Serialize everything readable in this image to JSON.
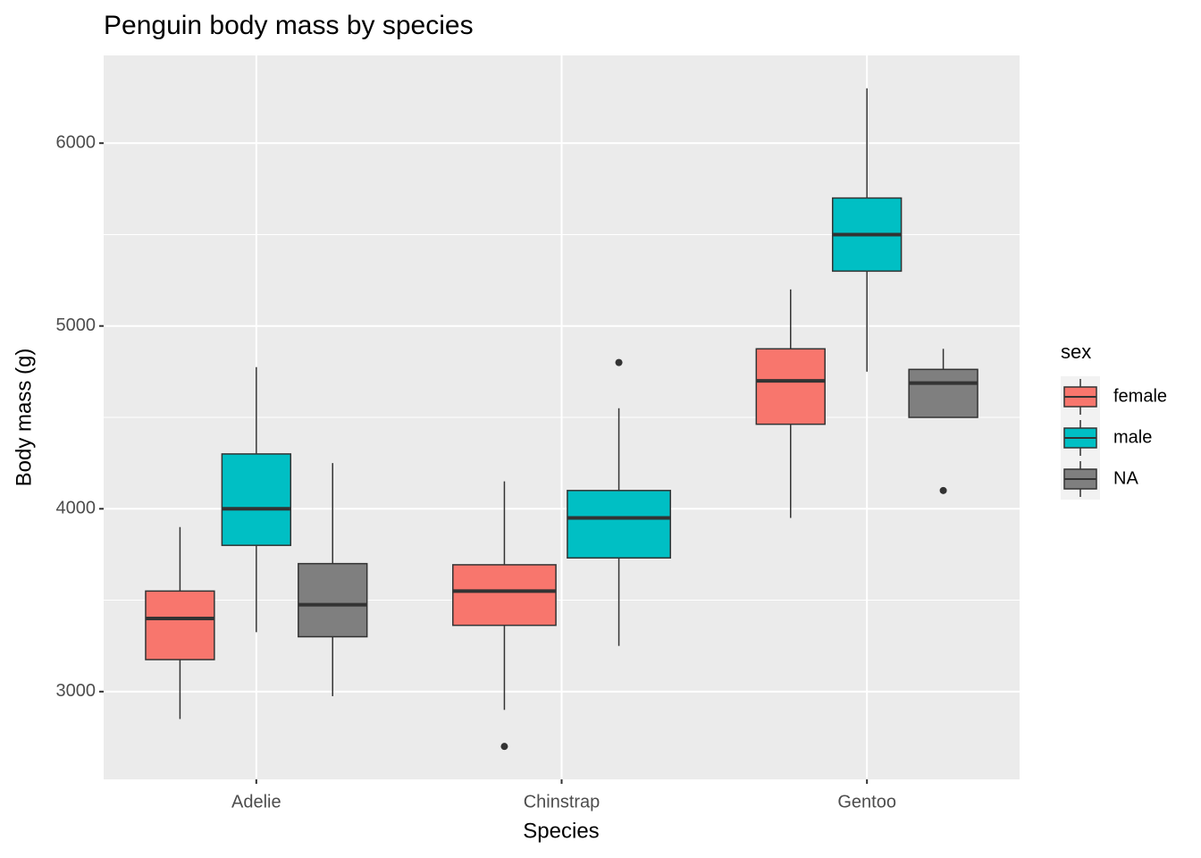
{
  "chart_data": {
    "type": "boxplot",
    "title": "Penguin body mass by species",
    "x_label": "Species",
    "y_label": "Body mass (g)",
    "categories": [
      "Adelie",
      "Chinstrap",
      "Gentoo"
    ],
    "legend_title": "sex",
    "legend_position": "right",
    "grid": true,
    "ylim": [
      2520,
      6480
    ],
    "yticks": [
      3000,
      4000,
      5000,
      6000
    ],
    "minor_yticks": [
      3500,
      4500,
      5500
    ],
    "series": [
      {
        "name": "female",
        "color": "#F8766D",
        "min": [
          2850,
          2900,
          3950
        ],
        "q1": [
          3175,
          3362.5,
          4462.5
        ],
        "median": [
          3400,
          3550,
          4700
        ],
        "q3": [
          3550,
          3693.75,
          4875
        ],
        "max": [
          3900,
          4150,
          5200
        ],
        "outliers": [
          [],
          [
            2700
          ],
          []
        ]
      },
      {
        "name": "male",
        "color": "#00BFC4",
        "min": [
          3325,
          3250,
          4750
        ],
        "q1": [
          3800,
          3731.25,
          5300
        ],
        "median": [
          4000,
          3950,
          5500
        ],
        "q3": [
          4300,
          4100,
          5700
        ],
        "max": [
          4775,
          4550,
          6300
        ],
        "outliers": [
          [],
          [
            4800
          ],
          []
        ]
      },
      {
        "name": "NA",
        "color": "#7F7F7F",
        "min": [
          2975,
          null,
          4500
        ],
        "q1": [
          3300,
          null,
          4500
        ],
        "median": [
          3475,
          null,
          4687.5
        ],
        "q3": [
          3700,
          null,
          4762.5
        ],
        "max": [
          4250,
          null,
          4875
        ],
        "outliers": [
          [],
          null,
          [
            4100
          ]
        ]
      }
    ]
  }
}
